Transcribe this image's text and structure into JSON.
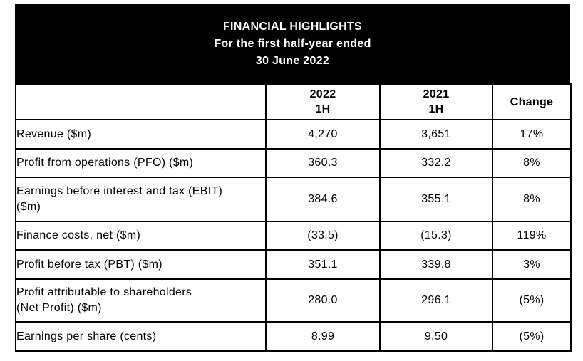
{
  "header": {
    "title": "FINANCIAL HIGHLIGHTS",
    "subtitle_line1": "For the first half-year ended",
    "subtitle_line2": "30 June 2022"
  },
  "table": {
    "columns": {
      "label": "",
      "col_2022": "2022\n1H",
      "col_2021": "2021\n1H",
      "col_change": "Change"
    },
    "rows": [
      {
        "label": "Revenue ($m)",
        "v2022": "4,270",
        "v2021": "3,651",
        "change": "17%"
      },
      {
        "label": "Profit from operations (PFO) ($m)",
        "v2022": "360.3",
        "v2021": "332.2",
        "change": "8%"
      },
      {
        "label": "Earnings before interest and tax (EBIT)\n($m)",
        "v2022": "384.6",
        "v2021": "355.1",
        "change": "8%"
      },
      {
        "label": "Finance costs, net ($m)",
        "v2022": "(33.5)",
        "v2021": "(15.3)",
        "change": "119%"
      },
      {
        "label": "Profit before tax (PBT) ($m)",
        "v2022": "351.1",
        "v2021": "339.8",
        "change": "3%"
      },
      {
        "label": "Profit attributable to shareholders\n(Net Profit) ($m)",
        "v2022": "280.0",
        "v2021": "296.1",
        "change": "(5%)"
      },
      {
        "label": "Earnings per share (cents)",
        "v2022": "8.99",
        "v2021": "9.50",
        "change": "(5%)"
      }
    ]
  },
  "colors": {
    "band_background": "#000000",
    "band_text": "#ffffff",
    "border": "#000000",
    "body_text": "#000000",
    "page_background": "#ffffff"
  }
}
